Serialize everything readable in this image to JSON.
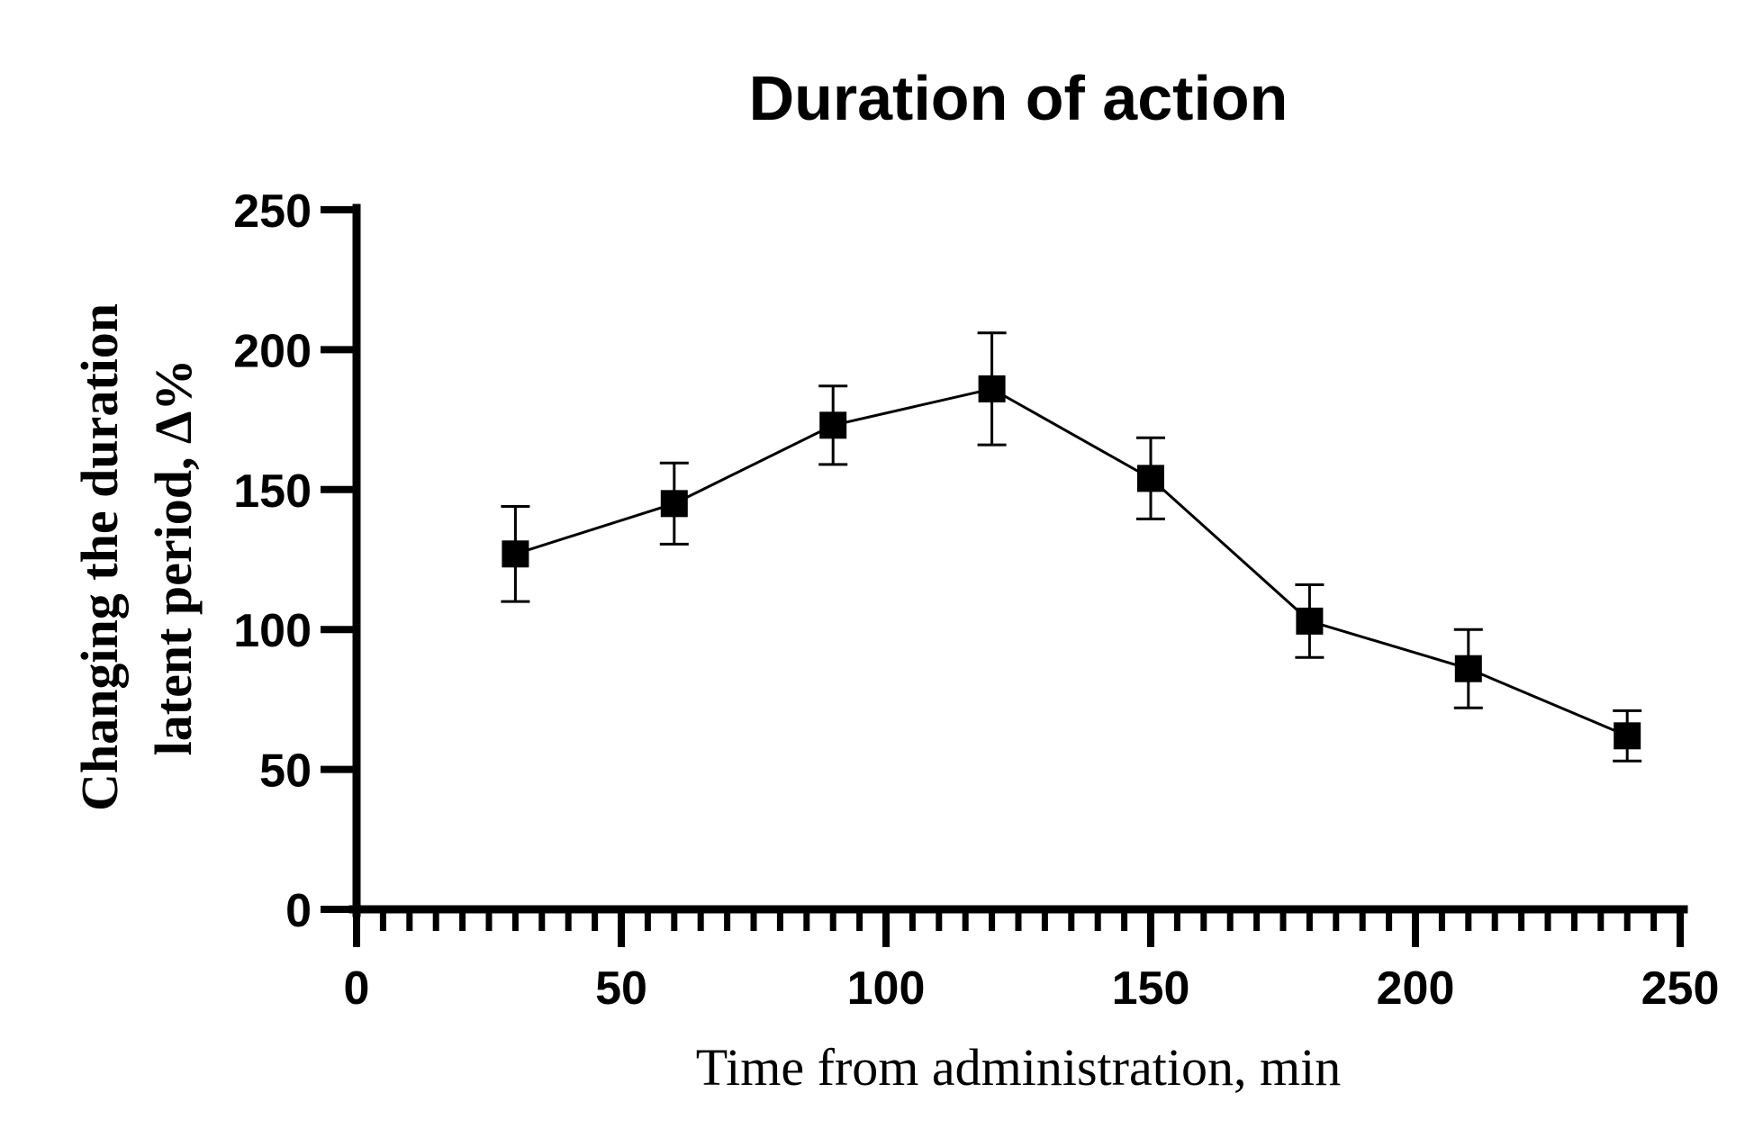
{
  "chart_data": {
    "type": "line",
    "title": "Duration of action",
    "xlabel": "Time from administration, min",
    "ylabel_lines": [
      "Changing the duration",
      "latent period, Δ%"
    ],
    "xlim": [
      0,
      250
    ],
    "ylim": [
      0,
      250
    ],
    "x_major_ticks": [
      0,
      50,
      100,
      150,
      200,
      250
    ],
    "x_tick_labels": [
      "0",
      "50",
      "100",
      "150",
      "200",
      "250"
    ],
    "x_minor_step": 5,
    "y_major_ticks": [
      0,
      50,
      100,
      150,
      200,
      250
    ],
    "y_tick_labels": [
      "0",
      "50",
      "100",
      "150",
      "200",
      "250"
    ],
    "grid": false,
    "legend": "none",
    "series": [
      {
        "x": [
          30,
          60,
          90,
          120,
          150,
          180,
          210,
          240
        ],
        "y": [
          127,
          145,
          173,
          186,
          154,
          103,
          86,
          62
        ],
        "error": [
          17,
          14.5,
          14,
          20,
          14.5,
          13,
          14,
          9
        ],
        "marker": "square",
        "color": "#000000"
      }
    ]
  }
}
